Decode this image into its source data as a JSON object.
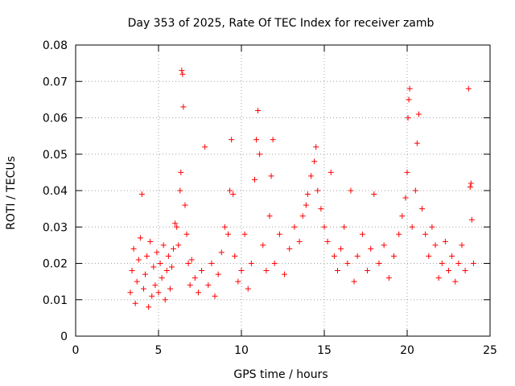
{
  "chart_data": {
    "type": "scatter",
    "title": "Day 353 of 2025, Rate Of TEC Index for receiver zamb",
    "xlabel": "GPS time / hours",
    "ylabel": "ROTI / TECUs",
    "xlim": [
      0,
      25
    ],
    "ylim": [
      0,
      0.08
    ],
    "xticks": [
      0,
      5,
      10,
      15,
      20,
      25
    ],
    "xtick_labels": [
      "0",
      "5",
      "10",
      "15",
      "20",
      "25"
    ],
    "yticks": [
      0,
      0.01,
      0.02,
      0.03,
      0.04,
      0.05,
      0.06,
      0.07,
      0.08
    ],
    "ytick_labels": [
      "0",
      "0.01",
      "0.02",
      "0.03",
      "0.04",
      "0.05",
      "0.06",
      "0.07",
      "0.08"
    ],
    "grid": true,
    "marker": "+",
    "marker_color": "#ff0000",
    "series": [
      {
        "points": [
          [
            3.3,
            0.012
          ],
          [
            3.4,
            0.018
          ],
          [
            3.5,
            0.024
          ],
          [
            3.6,
            0.009
          ],
          [
            3.7,
            0.015
          ],
          [
            3.8,
            0.021
          ],
          [
            3.9,
            0.027
          ],
          [
            4.0,
            0.039
          ],
          [
            4.1,
            0.013
          ],
          [
            4.2,
            0.017
          ],
          [
            4.3,
            0.022
          ],
          [
            4.4,
            0.008
          ],
          [
            4.5,
            0.026
          ],
          [
            4.6,
            0.011
          ],
          [
            4.7,
            0.019
          ],
          [
            4.8,
            0.014
          ],
          [
            4.9,
            0.023
          ],
          [
            5.0,
            0.012
          ],
          [
            5.1,
            0.02
          ],
          [
            5.2,
            0.016
          ],
          [
            5.3,
            0.025
          ],
          [
            5.4,
            0.01
          ],
          [
            5.5,
            0.018
          ],
          [
            5.6,
            0.022
          ],
          [
            5.7,
            0.013
          ],
          [
            5.8,
            0.019
          ],
          [
            5.9,
            0.024
          ],
          [
            6.0,
            0.031
          ],
          [
            6.1,
            0.03
          ],
          [
            6.2,
            0.025
          ],
          [
            6.3,
            0.04
          ],
          [
            6.35,
            0.045
          ],
          [
            6.4,
            0.073
          ],
          [
            6.45,
            0.072
          ],
          [
            6.5,
            0.063
          ],
          [
            6.6,
            0.036
          ],
          [
            6.7,
            0.028
          ],
          [
            6.8,
            0.02
          ],
          [
            6.9,
            0.014
          ],
          [
            7.0,
            0.021
          ],
          [
            7.2,
            0.016
          ],
          [
            7.4,
            0.012
          ],
          [
            7.6,
            0.018
          ],
          [
            7.8,
            0.052
          ],
          [
            8.0,
            0.014
          ],
          [
            8.2,
            0.02
          ],
          [
            8.4,
            0.011
          ],
          [
            8.6,
            0.017
          ],
          [
            8.8,
            0.023
          ],
          [
            9.0,
            0.03
          ],
          [
            9.2,
            0.028
          ],
          [
            9.3,
            0.04
          ],
          [
            9.4,
            0.054
          ],
          [
            9.5,
            0.039
          ],
          [
            9.6,
            0.022
          ],
          [
            9.8,
            0.015
          ],
          [
            10.0,
            0.018
          ],
          [
            10.2,
            0.028
          ],
          [
            10.4,
            0.013
          ],
          [
            10.6,
            0.02
          ],
          [
            10.8,
            0.043
          ],
          [
            10.9,
            0.054
          ],
          [
            11.0,
            0.062
          ],
          [
            11.1,
            0.05
          ],
          [
            11.3,
            0.025
          ],
          [
            11.5,
            0.018
          ],
          [
            11.7,
            0.033
          ],
          [
            11.8,
            0.044
          ],
          [
            11.9,
            0.054
          ],
          [
            12.0,
            0.02
          ],
          [
            12.3,
            0.028
          ],
          [
            12.6,
            0.017
          ],
          [
            12.9,
            0.024
          ],
          [
            13.2,
            0.03
          ],
          [
            13.5,
            0.026
          ],
          [
            13.7,
            0.033
          ],
          [
            13.9,
            0.036
          ],
          [
            14.0,
            0.039
          ],
          [
            14.2,
            0.044
          ],
          [
            14.4,
            0.048
          ],
          [
            14.5,
            0.052
          ],
          [
            14.6,
            0.04
          ],
          [
            14.8,
            0.035
          ],
          [
            15.0,
            0.03
          ],
          [
            15.2,
            0.026
          ],
          [
            15.4,
            0.045
          ],
          [
            15.6,
            0.022
          ],
          [
            15.8,
            0.018
          ],
          [
            16.0,
            0.024
          ],
          [
            16.2,
            0.03
          ],
          [
            16.4,
            0.02
          ],
          [
            16.6,
            0.04
          ],
          [
            16.8,
            0.015
          ],
          [
            17.0,
            0.022
          ],
          [
            17.3,
            0.028
          ],
          [
            17.6,
            0.018
          ],
          [
            17.8,
            0.024
          ],
          [
            18.0,
            0.039
          ],
          [
            18.3,
            0.02
          ],
          [
            18.6,
            0.025
          ],
          [
            18.9,
            0.016
          ],
          [
            19.2,
            0.022
          ],
          [
            19.5,
            0.028
          ],
          [
            19.7,
            0.033
          ],
          [
            19.9,
            0.038
          ],
          [
            20.0,
            0.045
          ],
          [
            20.05,
            0.06
          ],
          [
            20.1,
            0.065
          ],
          [
            20.15,
            0.068
          ],
          [
            20.3,
            0.03
          ],
          [
            20.5,
            0.04
          ],
          [
            20.6,
            0.053
          ],
          [
            20.7,
            0.061
          ],
          [
            20.9,
            0.035
          ],
          [
            21.1,
            0.028
          ],
          [
            21.3,
            0.022
          ],
          [
            21.5,
            0.03
          ],
          [
            21.7,
            0.025
          ],
          [
            21.9,
            0.016
          ],
          [
            22.1,
            0.02
          ],
          [
            22.3,
            0.026
          ],
          [
            22.5,
            0.018
          ],
          [
            22.7,
            0.022
          ],
          [
            22.9,
            0.015
          ],
          [
            23.1,
            0.02
          ],
          [
            23.3,
            0.025
          ],
          [
            23.5,
            0.018
          ],
          [
            23.7,
            0.068
          ],
          [
            23.8,
            0.041
          ],
          [
            23.85,
            0.042
          ],
          [
            23.9,
            0.032
          ],
          [
            24.0,
            0.02
          ]
        ]
      }
    ]
  }
}
